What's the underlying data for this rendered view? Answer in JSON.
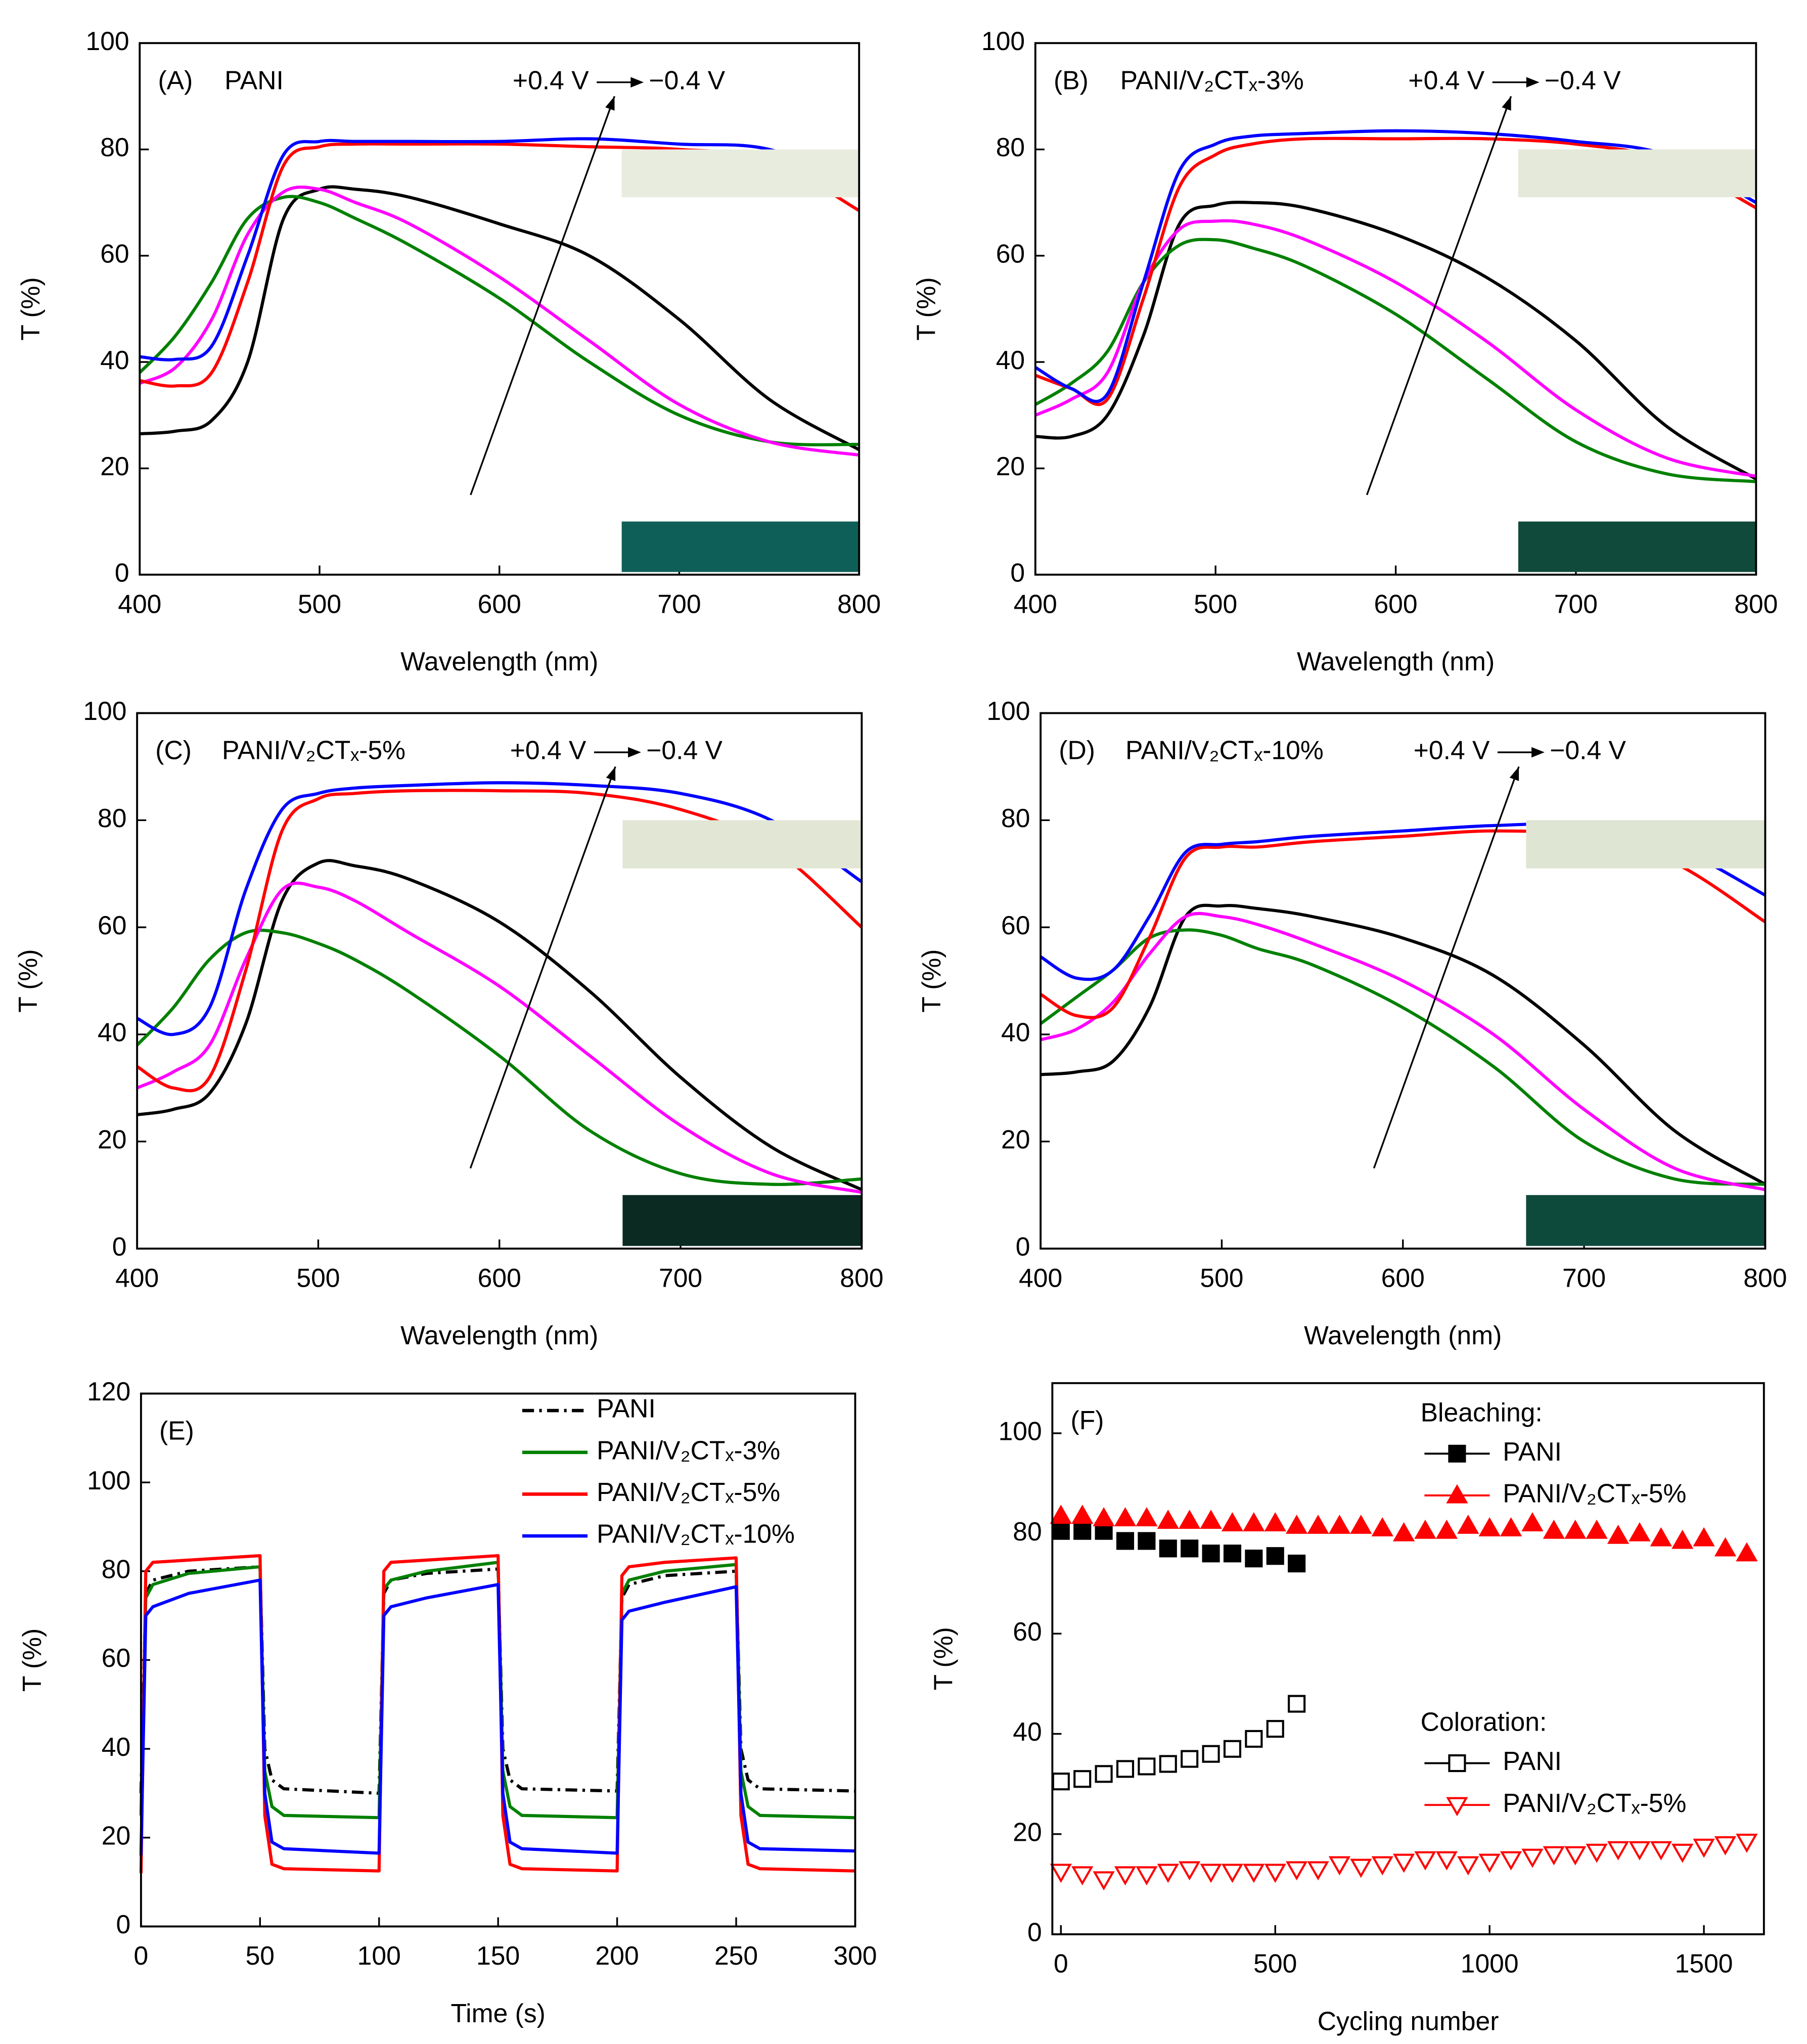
{
  "chart_data": [
    {
      "type": "line",
      "panel_label": "(A)",
      "title": "PANI",
      "x_label": "Wavelength (nm)",
      "y_label": "T (%)",
      "curve": "smooth",
      "annotation": {
        "from": "+0.4 V",
        "to": "−0.4 V"
      },
      "x": [
        400,
        420,
        440,
        460,
        480,
        500,
        520,
        550,
        600,
        650,
        700,
        750,
        800
      ],
      "xlim": [
        400,
        800
      ],
      "xticks": [
        400,
        500,
        600,
        700,
        800
      ],
      "ylim": [
        0,
        100
      ],
      "yticks": [
        0,
        20,
        40,
        60,
        80,
        100
      ],
      "series": [
        {
          "color": "#000000",
          "values": [
            26.5,
            27,
            29,
            40,
            67,
            72.5,
            72.5,
            71,
            66,
            60,
            48,
            33,
            23.5
          ]
        },
        {
          "color": "#008000",
          "values": [
            38,
            45,
            55,
            67,
            71,
            70,
            67,
            62,
            52,
            40,
            30,
            25,
            24.5
          ]
        },
        {
          "color": "#ff00ff",
          "values": [
            36,
            39,
            48,
            64,
            72,
            72.5,
            70,
            66,
            56,
            44,
            32,
            25,
            22.5
          ]
        },
        {
          "color": "#ff0000",
          "values": [
            36.5,
            35.5,
            38,
            55,
            77,
            80.5,
            81,
            81,
            81,
            80.5,
            80,
            78,
            68.5
          ]
        },
        {
          "color": "#0000ff",
          "values": [
            41,
            40.5,
            43,
            60,
            79,
            81.5,
            81.5,
            81.5,
            81.5,
            82,
            81,
            80,
            73
          ]
        }
      ]
    },
    {
      "type": "line",
      "panel_label": "(B)",
      "title": "PANI/V₂CTₓ-3%",
      "x_label": "Wavelength (nm)",
      "y_label": "T (%)",
      "curve": "smooth",
      "annotation": {
        "from": "+0.4 V",
        "to": "−0.4 V"
      },
      "x": [
        400,
        420,
        440,
        460,
        480,
        500,
        520,
        550,
        600,
        650,
        700,
        750,
        800
      ],
      "xlim": [
        400,
        800
      ],
      "xticks": [
        400,
        500,
        600,
        700,
        800
      ],
      "ylim": [
        0,
        100
      ],
      "yticks": [
        0,
        20,
        40,
        60,
        80,
        100
      ],
      "series": [
        {
          "color": "#000000",
          "values": [
            26,
            26,
            30,
            45,
            66,
            69.5,
            70,
            69,
            64,
            56,
            44,
            28,
            18
          ]
        },
        {
          "color": "#008000",
          "values": [
            32,
            36,
            42,
            55,
            62,
            63,
            61.5,
            58,
            49,
            37,
            25,
            19,
            17.5
          ]
        },
        {
          "color": "#ff00ff",
          "values": [
            30,
            33,
            38,
            55,
            65,
            66.5,
            66,
            63,
            55,
            44,
            31,
            22,
            18.5
          ]
        },
        {
          "color": "#ff0000",
          "values": [
            37.5,
            35,
            33,
            52,
            73,
            79,
            81,
            82,
            82,
            82,
            81,
            78,
            69
          ]
        },
        {
          "color": "#0000ff",
          "values": [
            39,
            35,
            34,
            55,
            76,
            81,
            82.5,
            83,
            83.5,
            83,
            81.5,
            79,
            70
          ]
        }
      ]
    },
    {
      "type": "line",
      "panel_label": "(C)",
      "title": "PANI/V₂CTₓ-5%",
      "x_label": "Wavelength (nm)",
      "y_label": "T (%)",
      "curve": "smooth",
      "annotation": {
        "from": "+0.4 V",
        "to": "−0.4 V"
      },
      "x": [
        400,
        420,
        440,
        460,
        480,
        500,
        520,
        550,
        600,
        650,
        700,
        750,
        800
      ],
      "xlim": [
        400,
        800
      ],
      "xticks": [
        400,
        500,
        600,
        700,
        800
      ],
      "ylim": [
        0,
        100
      ],
      "yticks": [
        0,
        20,
        40,
        60,
        80,
        100
      ],
      "series": [
        {
          "color": "#000000",
          "values": [
            25,
            26,
            29,
            42,
            65,
            72,
            71.5,
            69,
            61,
            48,
            32,
            19,
            11
          ]
        },
        {
          "color": "#008000",
          "values": [
            38,
            45,
            54,
            59,
            59,
            57,
            54,
            48,
            36,
            22,
            14,
            12,
            13
          ]
        },
        {
          "color": "#ff00ff",
          "values": [
            30,
            33,
            38,
            54,
            67,
            67.5,
            65,
            59,
            49,
            36,
            23,
            14,
            10.5
          ]
        },
        {
          "color": "#ff0000",
          "values": [
            34,
            30,
            32,
            52,
            78,
            84,
            85,
            85.5,
            85.5,
            85,
            82,
            75,
            60
          ]
        },
        {
          "color": "#0000ff",
          "values": [
            43,
            40,
            45,
            67,
            82,
            85,
            86,
            86.5,
            87,
            86.5,
            85,
            80,
            68.5
          ]
        }
      ]
    },
    {
      "type": "line",
      "panel_label": "(D)",
      "title": "PANI/V₂CTₓ-10%",
      "x_label": "Wavelength (nm)",
      "y_label": "T (%)",
      "curve": "smooth",
      "annotation": {
        "from": "+0.4 V",
        "to": "−0.4 V"
      },
      "x": [
        400,
        420,
        440,
        460,
        480,
        500,
        520,
        550,
        600,
        650,
        700,
        750,
        800
      ],
      "xlim": [
        400,
        800
      ],
      "xticks": [
        400,
        500,
        600,
        700,
        800
      ],
      "ylim": [
        0,
        100
      ],
      "yticks": [
        0,
        20,
        40,
        60,
        80,
        100
      ],
      "series": [
        {
          "color": "#000000",
          "values": [
            32.5,
            33,
            35,
            45,
            62,
            64,
            63.5,
            62,
            58,
            51,
            38,
            22,
            12
          ]
        },
        {
          "color": "#008000",
          "values": [
            42,
            47,
            52,
            58,
            59.5,
            58.5,
            56,
            53,
            45,
            34,
            20,
            13,
            12
          ]
        },
        {
          "color": "#ff00ff",
          "values": [
            39,
            41,
            46,
            55,
            62,
            62,
            60.5,
            57,
            50,
            40,
            26,
            15,
            11
          ]
        },
        {
          "color": "#ff0000",
          "values": [
            47.5,
            43.5,
            45,
            58,
            73,
            75,
            75,
            76,
            77,
            78,
            77,
            72,
            61
          ]
        },
        {
          "color": "#0000ff",
          "values": [
            54.5,
            50.5,
            52,
            62,
            74,
            75.5,
            76,
            77,
            78,
            79,
            79,
            75,
            66
          ]
        }
      ]
    },
    {
      "type": "line",
      "panel_label": "(E)",
      "x_label": "Time (s)",
      "y_label": "T (%)",
      "curve": "linear",
      "legend": "upper right",
      "x": [
        0,
        2,
        5,
        20,
        50,
        52,
        55,
        60,
        100,
        102,
        105,
        120,
        150,
        152,
        155,
        160,
        200,
        202,
        205,
        220,
        250,
        252,
        255,
        260,
        300
      ],
      "xlim": [
        0,
        300
      ],
      "xticks": [
        0,
        50,
        100,
        150,
        200,
        250,
        300
      ],
      "ylim": [
        0,
        120
      ],
      "yticks": [
        0,
        20,
        40,
        60,
        80,
        100,
        120
      ],
      "series": [
        {
          "name": "PANI",
          "color": "#000000",
          "dash": "dashdot",
          "values": [
            30,
            75,
            78,
            80,
            81,
            40,
            33,
            31,
            30,
            75,
            78,
            79.5,
            80.5,
            40,
            33,
            31,
            30.5,
            74,
            77,
            79,
            80,
            40,
            33,
            31,
            30.5
          ]
        },
        {
          "name": "PANI/V₂CTₓ-3%",
          "color": "#008000",
          "values": [
            25,
            74,
            77,
            79.5,
            81,
            35,
            27,
            25,
            24.5,
            76,
            78,
            80,
            82,
            35,
            27,
            25,
            24.5,
            75,
            78,
            80,
            81.5,
            35,
            27,
            25,
            24.5
          ]
        },
        {
          "name": "PANI/V₂CTₓ-5%",
          "color": "#ff0000",
          "values": [
            12,
            80,
            82,
            82.5,
            83.5,
            25,
            14,
            13,
            12.5,
            80,
            82,
            82.5,
            83.5,
            25,
            14,
            13,
            12.5,
            79,
            81,
            82,
            83,
            25,
            14,
            13,
            12.5
          ]
        },
        {
          "name": "PANI/V₂CTₓ-10%",
          "color": "#0000ff",
          "values": [
            16,
            70,
            72,
            75,
            78,
            30,
            19,
            17.5,
            16.5,
            70,
            72,
            74,
            77,
            30,
            19,
            17.5,
            16.5,
            69,
            71,
            73,
            76.5,
            30,
            19,
            17.5,
            17
          ]
        }
      ]
    },
    {
      "type": "scatter",
      "panel_label": "(F)",
      "x_label": "Cycling number",
      "y_label": "T (%)",
      "xlim": [
        -20,
        1640
      ],
      "xticks": [
        0,
        500,
        1000,
        1500
      ],
      "ylim": [
        0,
        110
      ],
      "yticks": [
        0,
        20,
        40,
        60,
        80,
        100
      ],
      "groups": [
        {
          "title": "Bleaching:",
          "series": [
            {
              "name": "PANI",
              "color": "#000000",
              "marker": "square",
              "filled": true,
              "x": [
                0,
                50,
                100,
                150,
                200,
                250,
                300,
                350,
                400,
                450,
                500,
                550
              ],
              "values": [
                80.5,
                80.5,
                80.5,
                78.5,
                78.5,
                77,
                77,
                76,
                76,
                75,
                75.5,
                74
              ]
            },
            {
              "name": "PANI/V₂CTₓ-5%",
              "color": "#ff0000",
              "marker": "triangle-up",
              "filled": true,
              "x": [
                0,
                50,
                100,
                150,
                200,
                250,
                300,
                350,
                400,
                450,
                500,
                550,
                600,
                650,
                700,
                750,
                800,
                850,
                900,
                950,
                1000,
                1050,
                1100,
                1150,
                1200,
                1250,
                1300,
                1350,
                1400,
                1450,
                1500,
                1550,
                1600
              ],
              "values": [
                83.5,
                83.5,
                83,
                83,
                83,
                82.5,
                82.5,
                82.5,
                82,
                82,
                82,
                81.5,
                81.5,
                81.5,
                81.5,
                81,
                80,
                80.5,
                80.5,
                81.5,
                81,
                81,
                82,
                80.5,
                80.5,
                80.5,
                79.5,
                80,
                79,
                78.5,
                79,
                77,
                76
              ]
            }
          ]
        },
        {
          "title": "Coloration:",
          "series": [
            {
              "name": "PANI",
              "color": "#000000",
              "marker": "square",
              "filled": false,
              "x": [
                0,
                50,
                100,
                150,
                200,
                250,
                300,
                350,
                400,
                450,
                500,
                550
              ],
              "values": [
                30.5,
                31,
                32,
                33,
                33.5,
                34,
                35,
                36,
                37,
                39,
                41,
                46
              ]
            },
            {
              "name": "PANI/V₂CTₓ-5%",
              "color": "#ff0000",
              "marker": "triangle-down",
              "filled": false,
              "x": [
                0,
                50,
                100,
                150,
                200,
                250,
                300,
                350,
                400,
                450,
                500,
                550,
                600,
                650,
                700,
                750,
                800,
                850,
                900,
                950,
                1000,
                1050,
                1100,
                1150,
                1200,
                1250,
                1300,
                1350,
                1400,
                1450,
                1500,
                1550,
                1600
              ],
              "values": [
                12.5,
                12,
                11,
                12,
                12,
                12.5,
                13,
                12.5,
                12.5,
                12.5,
                12.5,
                13,
                13,
                14,
                13.5,
                14,
                14.5,
                15,
                15,
                14,
                14.5,
                15,
                15.5,
                16,
                16,
                16.5,
                17,
                17,
                17,
                16.5,
                17.5,
                18,
                18.5
              ]
            }
          ]
        }
      ]
    }
  ]
}
